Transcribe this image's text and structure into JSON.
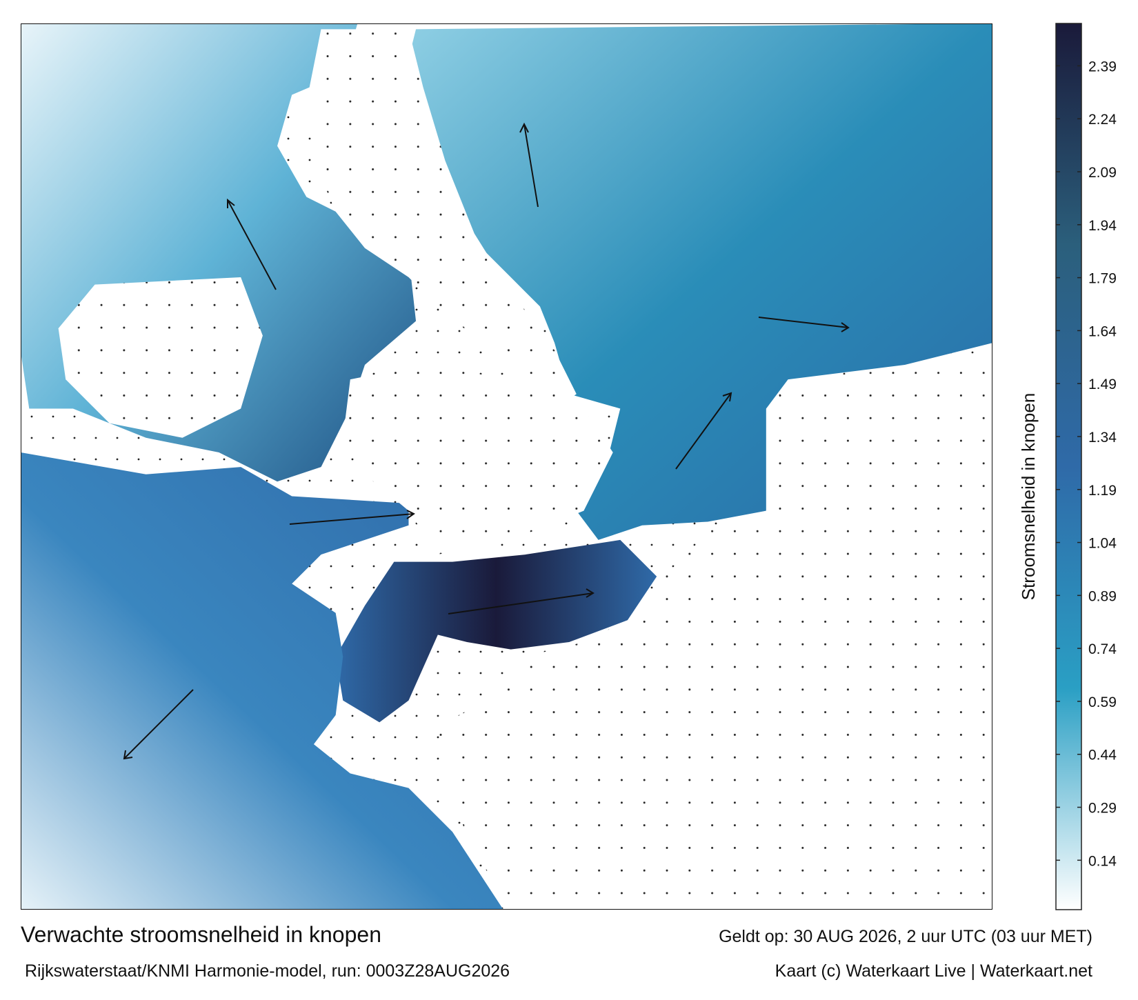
{
  "map": {
    "colorbar": {
      "label": "Stroomsnelheid in knopen",
      "lim": [
        0,
        2.51
      ],
      "ticks": [
        0.14,
        0.29,
        0.44,
        0.59,
        0.74,
        0.89,
        1.04,
        1.19,
        1.34,
        1.49,
        1.64,
        1.79,
        1.94,
        2.09,
        2.24,
        2.39
      ],
      "colors": [
        "#ffffff",
        "#2a9fc4",
        "#2f6aa8",
        "#2b5f7c",
        "#1a1a3a"
      ]
    }
  },
  "footer": {
    "title": "Verwachte stroomsnelheid in knopen",
    "valid": "Geldt op: 30 AUG 2026, 2 uur UTC (03 uur MET)",
    "model": "Rijkswaterstaat/KNMI Harmonie-model, run: 0003Z28AUG2026",
    "credit": "Kaart (c) Waterkaart Live | Waterkaart.net"
  }
}
